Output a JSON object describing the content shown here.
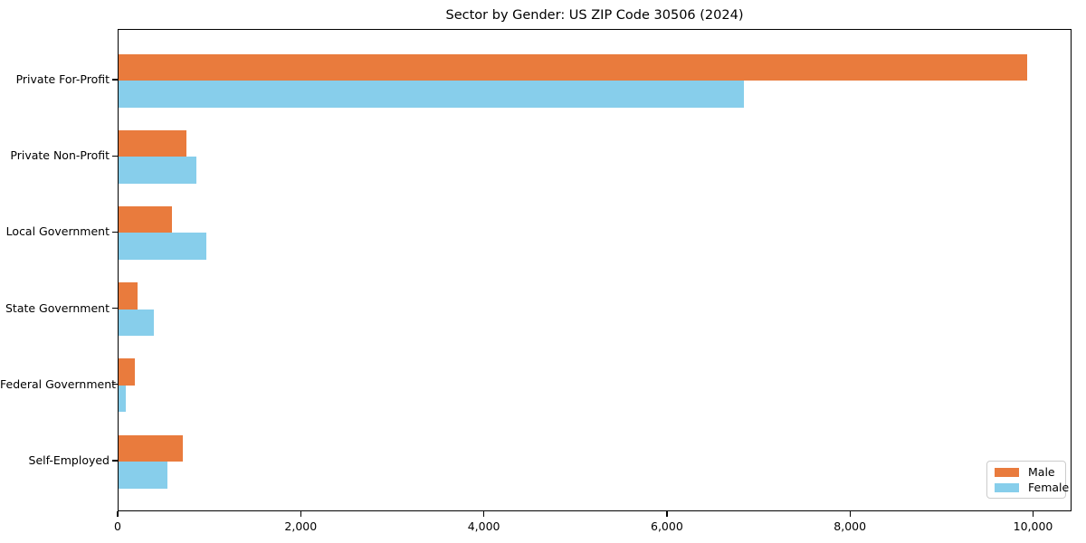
{
  "chart_data": {
    "type": "bar",
    "orientation": "horizontal",
    "title": "Sector by Gender: US ZIP Code 30506 (2024)",
    "categories": [
      "Private For-Profit",
      "Private Non-Profit",
      "Local Government",
      "State Government",
      "Federal Government",
      "Self-Employed"
    ],
    "series": [
      {
        "name": "Male",
        "color": "#e97b3d",
        "values": [
          9930,
          740,
          580,
          210,
          180,
          705
        ]
      },
      {
        "name": "Female",
        "color": "#87ceeb",
        "values": [
          6830,
          855,
          960,
          385,
          75,
          530
        ]
      }
    ],
    "xlabel": "",
    "ylabel": "",
    "xlim": [
      0,
      10420
    ],
    "xticks": [
      0,
      2000,
      4000,
      6000,
      8000,
      10000
    ],
    "xtick_labels": [
      "0",
      "2,000",
      "4,000",
      "6,000",
      "8,000",
      "10,000"
    ],
    "grid": false,
    "legend": {
      "position": "lower right",
      "entries": [
        "Male",
        "Female"
      ]
    }
  }
}
